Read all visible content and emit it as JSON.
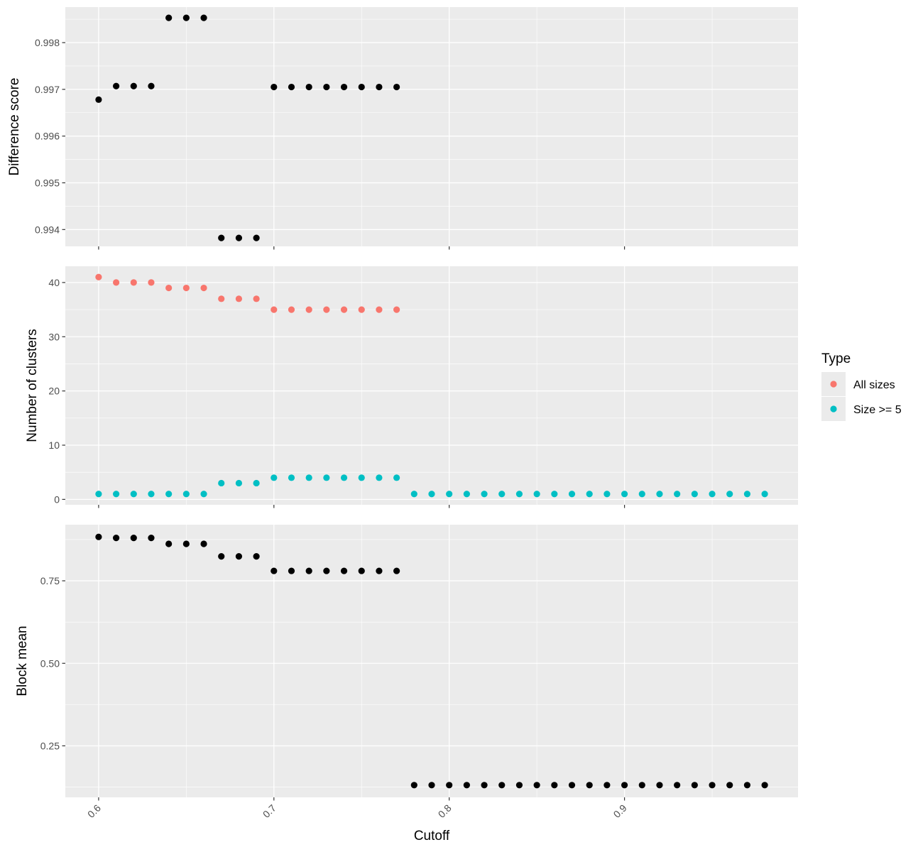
{
  "chart_data": {
    "type": "scatter",
    "x_axis": {
      "label": "Cutoff",
      "range": [
        0.581,
        0.999
      ],
      "ticks": [
        0.6,
        0.7,
        0.8,
        0.9
      ],
      "tick_labels": [
        "0.6",
        "0.7",
        "0.8",
        "0.9"
      ]
    },
    "panels": [
      {
        "ylabel": "Difference score",
        "ylim": [
          0.99364,
          0.99876
        ],
        "y_ticks": [
          0.994,
          0.995,
          0.996,
          0.997,
          0.998
        ],
        "y_tick_labels": [
          "0.994",
          "0.995",
          "0.996",
          "0.997",
          "0.998"
        ],
        "series": [
          {
            "color": "#000000",
            "x": [
              0.6,
              0.61,
              0.62,
              0.63,
              0.64,
              0.65,
              0.66,
              0.67,
              0.68,
              0.69,
              0.7,
              0.71,
              0.72,
              0.73,
              0.74,
              0.75,
              0.76,
              0.77
            ],
            "y": [
              0.99678,
              0.99707,
              0.99707,
              0.99707,
              0.99853,
              0.99853,
              0.99853,
              0.99382,
              0.99382,
              0.99382,
              0.99705,
              0.99705,
              0.99705,
              0.99705,
              0.99705,
              0.99705,
              0.99705,
              0.99705
            ]
          }
        ]
      },
      {
        "ylabel": "Number of clusters",
        "ylim": [
          -1,
          43
        ],
        "y_ticks": [
          0,
          10,
          20,
          30,
          40
        ],
        "y_tick_labels": [
          "0",
          "10",
          "20",
          "30",
          "40"
        ],
        "series": [
          {
            "name": "All sizes",
            "color": "#F8766D",
            "x": [
              0.6,
              0.61,
              0.62,
              0.63,
              0.64,
              0.65,
              0.66,
              0.67,
              0.68,
              0.69,
              0.7,
              0.71,
              0.72,
              0.73,
              0.74,
              0.75,
              0.76,
              0.77
            ],
            "y": [
              41,
              40,
              40,
              40,
              39,
              39,
              39,
              37,
              37,
              37,
              35,
              35,
              35,
              35,
              35,
              35,
              35,
              35
            ]
          },
          {
            "name": "Size >= 5",
            "color": "#00BFC4",
            "x": [
              0.6,
              0.61,
              0.62,
              0.63,
              0.64,
              0.65,
              0.66,
              0.67,
              0.68,
              0.69,
              0.7,
              0.71,
              0.72,
              0.73,
              0.74,
              0.75,
              0.76,
              0.77,
              0.78,
              0.79,
              0.8,
              0.81,
              0.82,
              0.83,
              0.84,
              0.85,
              0.86,
              0.87,
              0.88,
              0.89,
              0.9,
              0.91,
              0.92,
              0.93,
              0.94,
              0.95,
              0.96,
              0.97,
              0.98
            ],
            "y": [
              1,
              1,
              1,
              1,
              1,
              1,
              1,
              3,
              3,
              3,
              4,
              4,
              4,
              4,
              4,
              4,
              4,
              4,
              1,
              1,
              1,
              1,
              1,
              1,
              1,
              1,
              1,
              1,
              1,
              1,
              1,
              1,
              1,
              1,
              1,
              1,
              1,
              1,
              1
            ]
          }
        ]
      },
      {
        "ylabel": "Block mean",
        "ylim": [
          0.094,
          0.92
        ],
        "y_ticks": [
          0.25,
          0.5,
          0.75
        ],
        "y_tick_labels": [
          "0.25",
          "0.50",
          "0.75"
        ],
        "series": [
          {
            "color": "#000000",
            "x": [
              0.6,
              0.61,
              0.62,
              0.63,
              0.64,
              0.65,
              0.66,
              0.67,
              0.68,
              0.69,
              0.7,
              0.71,
              0.72,
              0.73,
              0.74,
              0.75,
              0.76,
              0.77,
              0.78,
              0.79,
              0.8,
              0.81,
              0.82,
              0.83,
              0.84,
              0.85,
              0.86,
              0.87,
              0.88,
              0.89,
              0.9,
              0.91,
              0.92,
              0.93,
              0.94,
              0.95,
              0.96,
              0.97,
              0.98
            ],
            "y": [
              0.883,
              0.88,
              0.88,
              0.88,
              0.862,
              0.862,
              0.862,
              0.824,
              0.824,
              0.824,
              0.78,
              0.78,
              0.78,
              0.78,
              0.78,
              0.78,
              0.78,
              0.78,
              0.131,
              0.131,
              0.131,
              0.131,
              0.131,
              0.131,
              0.131,
              0.131,
              0.131,
              0.131,
              0.131,
              0.131,
              0.131,
              0.131,
              0.131,
              0.131,
              0.131,
              0.131,
              0.131,
              0.131,
              0.131
            ]
          }
        ]
      }
    ],
    "legend": {
      "title": "Type",
      "placement": "right",
      "entries": [
        {
          "label": "All sizes",
          "color": "#F8766D"
        },
        {
          "label": "Size >= 5",
          "color": "#00BFC4"
        }
      ]
    },
    "grid": true
  }
}
